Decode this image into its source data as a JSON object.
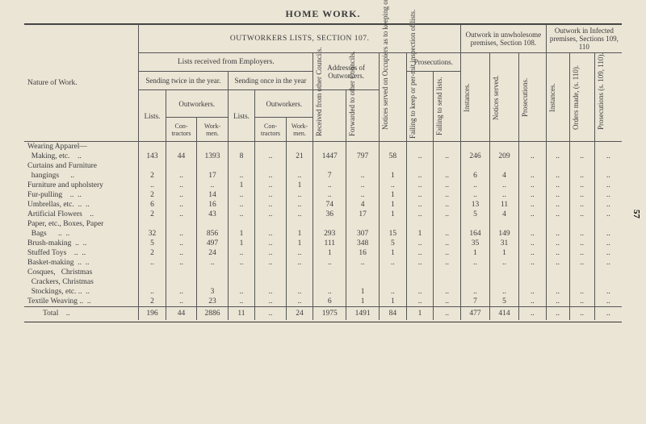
{
  "title": "HOME WORK.",
  "page_number": "57",
  "headers": {
    "section107": "OUTWORKERS LISTS, SECTION 107.",
    "section108": "Outwork in unwholesome premises, Section 108.",
    "section109": "Outwork in Infected premises, Sections 109, 110",
    "nature": "Nature of Work.",
    "lists_emp": "Lists received from Employers.",
    "twice": "Sending twice in the year.",
    "once": "Sending once in the year",
    "addresses": "Addresses of Outworkers.",
    "outworkers": "Outworkers.",
    "lists": "Lists.",
    "contractors": "Con-tractors",
    "workmen": "Work-men.",
    "received": "Received from other Councils.",
    "forwarded": "Forwarded to other Councils.",
    "notices_occ": "Notices served on Occupiers as to keeping or sending lists.",
    "prosecutions": "Prosecutions.",
    "fail_keep": "Failing to keep or per-mit inspection of lists.",
    "fail_send": "Failing to send lists.",
    "instances": "Instances.",
    "notices_served": "Notices served.",
    "orders": "Orders made, (s. 110).",
    "pros109": "Prosecutions (s. 109, 110)."
  },
  "rows": [
    {
      "label": "Wearing Apparel—",
      "c": [
        "",
        "",
        "",
        "",
        "",
        "",
        "",
        "",
        "",
        "",
        "",
        "",
        "",
        "",
        "",
        "",
        ""
      ]
    },
    {
      "label": "  Making, etc.    ..",
      "c": [
        "143",
        "44",
        "1393",
        "8",
        "..",
        "21",
        "1447",
        "797",
        "58",
        "..",
        "..",
        "246",
        "209",
        "..",
        "..",
        "..",
        ".."
      ]
    },
    {
      "label": "Curtains and Furniture",
      "c": [
        "",
        "",
        "",
        "",
        "",
        "",
        "",
        "",
        "",
        "",
        "",
        "",
        "",
        "",
        "",
        "",
        ""
      ]
    },
    {
      "label": "  hangings      ..",
      "c": [
        "2",
        "..",
        "17",
        "..",
        "..",
        "..",
        "7",
        "..",
        "1",
        "..",
        "..",
        "6",
        "4",
        "..",
        "..",
        "..",
        ".."
      ]
    },
    {
      "label": "Furniture and upholstery",
      "c": [
        "..",
        "..",
        "..",
        "1",
        "..",
        "1",
        "..",
        "..",
        "..",
        "..",
        "..",
        "..",
        "..",
        "..",
        "..",
        "..",
        ".."
      ]
    },
    {
      "label": "Fur-pulling    ..  ..",
      "c": [
        "2",
        "..",
        "14",
        "..",
        "..",
        "..",
        "..",
        "..",
        "1",
        "..",
        "..",
        "..",
        "..",
        "..",
        "..",
        "..",
        ".."
      ]
    },
    {
      "label": "Umbrellas, etc.  ..  ..",
      "c": [
        "6",
        "..",
        "16",
        "..",
        "..",
        "..",
        "74",
        "4",
        "1",
        "..",
        "..",
        "13",
        "11",
        "..",
        "..",
        "..",
        ".."
      ]
    },
    {
      "label": "Artificial Flowers    ..",
      "c": [
        "2",
        "..",
        "43",
        "..",
        "..",
        "..",
        "36",
        "17",
        "1",
        "..",
        "..",
        "5",
        "4",
        "..",
        "..",
        "..",
        ".."
      ]
    },
    {
      "label": "Paper, etc., Boxes, Paper",
      "c": [
        "",
        "",
        "",
        "",
        "",
        "",
        "",
        "",
        "",
        "",
        "",
        "",
        "",
        "",
        "",
        "",
        ""
      ]
    },
    {
      "label": "  Bags      ..  ..",
      "c": [
        "32",
        "..",
        "856",
        "1",
        "..",
        "1",
        "293",
        "307",
        "15",
        "1",
        "..",
        "164",
        "149",
        "..",
        "..",
        "..",
        ".."
      ]
    },
    {
      "label": "Brush-making  ..  ..",
      "c": [
        "5",
        "..",
        "497",
        "1",
        "..",
        "1",
        "111",
        "348",
        "5",
        "..",
        "..",
        "35",
        "31",
        "..",
        "..",
        "..",
        ".."
      ]
    },
    {
      "label": "Stuffed Toys    ..  ..",
      "c": [
        "2",
        "..",
        "24",
        "..",
        "..",
        "..",
        "1",
        "16",
        "1",
        "..",
        "..",
        "1",
        "1",
        "..",
        "..",
        "..",
        ".."
      ]
    },
    {
      "label": "Basket-making  ..  ..",
      "c": [
        "..",
        "..",
        "..",
        "..",
        "..",
        "..",
        "..",
        "..",
        "..",
        "..",
        "..",
        "..",
        "..",
        "..",
        "..",
        "..",
        ".."
      ]
    },
    {
      "label": "Cosques,   Christmas",
      "c": [
        "",
        "",
        "",
        "",
        "",
        "",
        "",
        "",
        "",
        "",
        "",
        "",
        "",
        "",
        "",
        "",
        ""
      ]
    },
    {
      "label": "  Crackers, Christmas",
      "c": [
        "",
        "",
        "",
        "",
        "",
        "",
        "",
        "",
        "",
        "",
        "",
        "",
        "",
        "",
        "",
        "",
        ""
      ]
    },
    {
      "label": "  Stockings, etc. ..  ..",
      "c": [
        "..",
        "..",
        "3",
        "..",
        "..",
        "..",
        "..",
        "1",
        "..",
        "..",
        "..",
        "..",
        "..",
        "..",
        "..",
        "..",
        ".."
      ]
    },
    {
      "label": "Textile Weaving ..  ..",
      "c": [
        "2",
        "..",
        "23",
        "..",
        "..",
        "..",
        "6",
        "1",
        "1",
        "..",
        "..",
        "7",
        "5",
        "..",
        "..",
        "..",
        ".."
      ]
    }
  ],
  "total": {
    "label": "        Total    ..",
    "c": [
      "196",
      "44",
      "2886",
      "11",
      "..",
      "24",
      "1975",
      "1491",
      "84",
      "1",
      "..",
      "477",
      "414",
      "..",
      "..",
      "..",
      ".."
    ]
  }
}
